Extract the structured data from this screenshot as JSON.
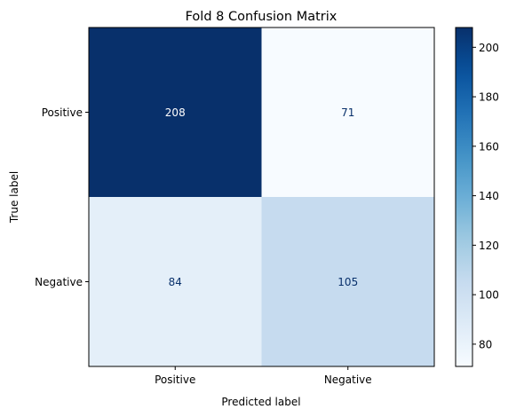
{
  "chart_data": {
    "type": "heatmap",
    "title": "Fold 8 Confusion Matrix",
    "xlabel": "Predicted label",
    "ylabel": "True label",
    "x_categories": [
      "Positive",
      "Negative"
    ],
    "y_categories": [
      "Positive",
      "Negative"
    ],
    "values": [
      [
        208,
        71
      ],
      [
        84,
        105
      ]
    ],
    "colormap": "Blues",
    "vmin": 71,
    "vmax": 208,
    "colorbar_ticks": [
      80,
      100,
      120,
      140,
      160,
      180,
      200
    ],
    "dark_text_color": "#08306b",
    "light_text_color": "#ffffff",
    "grid": false
  }
}
